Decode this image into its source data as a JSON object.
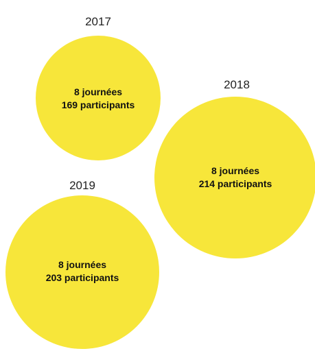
{
  "items": [
    {
      "year": "2017",
      "days": "8 journées",
      "participants": "169 participants"
    },
    {
      "year": "2018",
      "days": "8 journées",
      "participants": "214 participants"
    },
    {
      "year": "2019",
      "days": "8 journées",
      "participants": "203 participants"
    }
  ]
}
